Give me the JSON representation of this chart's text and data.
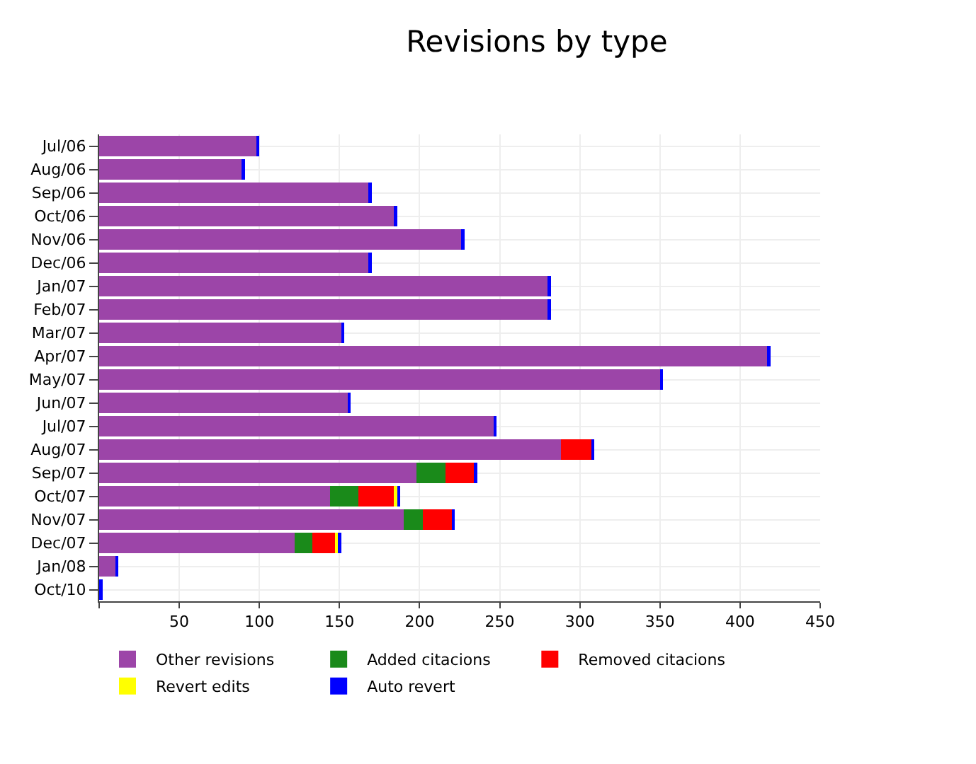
{
  "chart_data": {
    "type": "bar",
    "orientation": "horizontal",
    "stacked": true,
    "title": "Revisions by type",
    "categories": [
      "Jul/06",
      "Aug/06",
      "Sep/06",
      "Oct/06",
      "Nov/06",
      "Dec/06",
      "Jan/07",
      "Feb/07",
      "Mar/07",
      "Apr/07",
      "May/07",
      "Jun/07",
      "Jul/07",
      "Aug/07",
      "Sep/07",
      "Oct/07",
      "Nov/07",
      "Dec/07",
      "Jan/08",
      "Oct/10"
    ],
    "series": [
      {
        "name": "Other revisions",
        "color": "#9c45a8",
        "values": [
          98,
          89,
          168,
          184,
          226,
          168,
          280,
          280,
          151,
          417,
          350,
          155,
          246,
          288,
          198,
          144,
          190,
          122,
          10,
          0
        ]
      },
      {
        "name": "Added citacions",
        "color": "#1a8a1a",
        "values": [
          0,
          0,
          0,
          0,
          0,
          0,
          0,
          0,
          0,
          0,
          0,
          0,
          0,
          0,
          18,
          18,
          12,
          11,
          0,
          0
        ]
      },
      {
        "name": "Removed citacions",
        "color": "#ff0000",
        "values": [
          0,
          0,
          0,
          0,
          0,
          0,
          0,
          0,
          0,
          0,
          0,
          0,
          0,
          19,
          18,
          22,
          18,
          14,
          0,
          0
        ]
      },
      {
        "name": "Revert edits",
        "color": "#ffff00",
        "values": [
          0,
          0,
          0,
          0,
          0,
          0,
          0,
          0,
          0,
          0,
          0,
          0,
          0,
          0,
          0,
          2,
          0,
          2,
          0,
          0
        ]
      },
      {
        "name": "Auto revert",
        "color": "#0000ff",
        "values": [
          2,
          2,
          2,
          2,
          2,
          2,
          2,
          2,
          2,
          2,
          2,
          2,
          2,
          2,
          2,
          2,
          2,
          2,
          2,
          2
        ]
      }
    ],
    "xlim": [
      0,
      450
    ],
    "xticks": [
      {
        "value": 0,
        "label": null
      },
      50,
      100,
      150,
      200,
      250,
      300,
      350,
      400,
      450
    ],
    "grid": true,
    "legend": "bottom"
  }
}
